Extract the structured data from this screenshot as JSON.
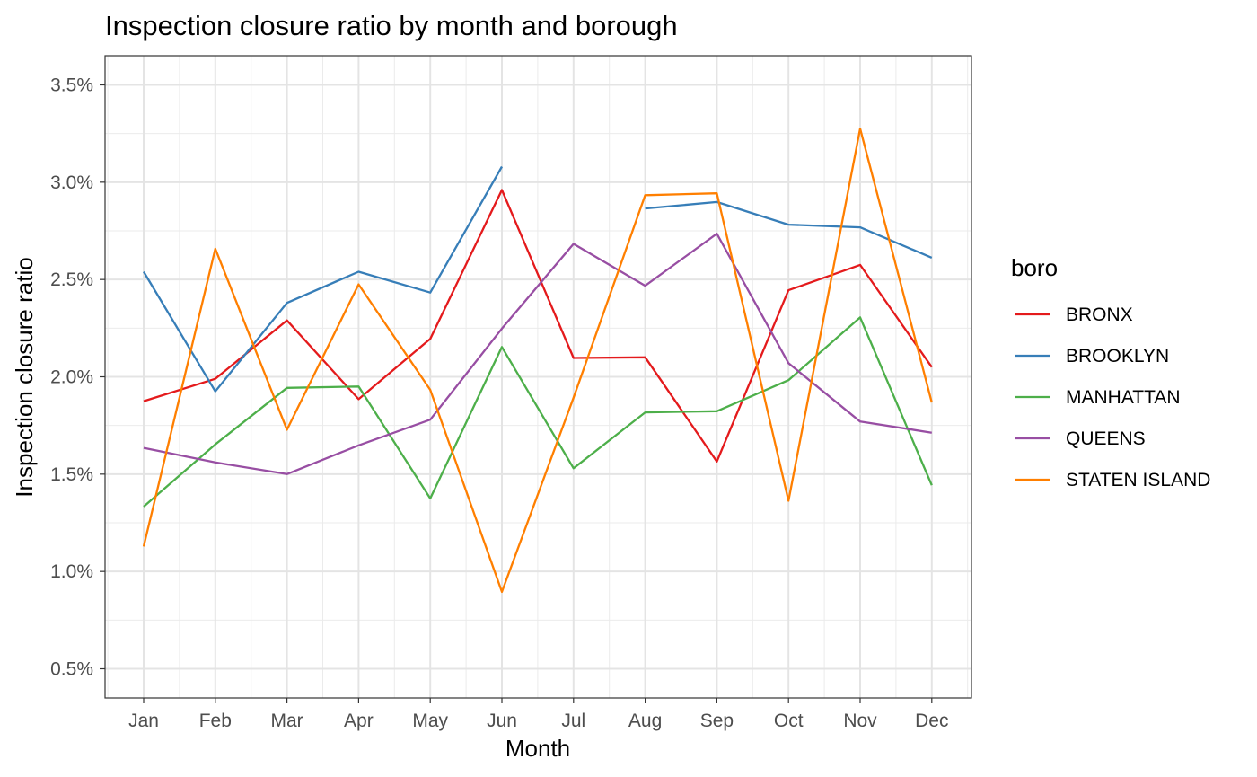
{
  "chart_data": {
    "type": "line",
    "title": "Inspection closure ratio by month and borough",
    "xlabel": "Month",
    "ylabel": "Inspection closure ratio",
    "categories": [
      "Jan",
      "Feb",
      "Mar",
      "Apr",
      "May",
      "Jun",
      "Jul",
      "Aug",
      "Sep",
      "Oct",
      "Nov",
      "Dec"
    ],
    "ylim": [
      0.0035,
      0.0365
    ],
    "yticks": [
      0.005,
      0.01,
      0.015,
      0.02,
      0.025,
      0.03,
      0.035
    ],
    "ytick_labels": [
      "0.5%",
      "1.0%",
      "1.5%",
      "2.0%",
      "2.5%",
      "3.0%",
      "3.5%"
    ],
    "grid": true,
    "legend": {
      "title": "boro",
      "position": "right"
    },
    "series": [
      {
        "name": "BRONX",
        "color": "#E41A1C",
        "values": [
          0.01875,
          0.0199,
          0.0229,
          0.01885,
          0.02195,
          0.0296,
          0.02097,
          0.021,
          0.01565,
          0.02445,
          0.02575,
          0.0205
        ]
      },
      {
        "name": "BROOKLYN",
        "color": "#377EB8",
        "values": [
          0.0254,
          0.01925,
          0.0238,
          0.0254,
          0.02433,
          0.0308,
          null,
          0.02865,
          0.02898,
          0.02782,
          0.02768,
          0.02612
        ]
      },
      {
        "name": "MANHATTAN",
        "color": "#4DAF4A",
        "values": [
          0.01333,
          0.01653,
          0.01943,
          0.0195,
          0.01375,
          0.02153,
          0.0153,
          0.01817,
          0.01823,
          0.01983,
          0.02305,
          0.01443
        ]
      },
      {
        "name": "QUEENS",
        "color": "#984EA3",
        "values": [
          0.01635,
          0.0156,
          0.015,
          0.01648,
          0.0178,
          0.02248,
          0.02683,
          0.02468,
          0.02735,
          0.0207,
          0.0177,
          0.01713
        ]
      },
      {
        "name": "STATEN ISLAND",
        "color": "#FF7F00",
        "values": [
          0.01128,
          0.02658,
          0.01728,
          0.02475,
          0.01933,
          0.00895,
          0.01893,
          0.02933,
          0.02943,
          0.01363,
          0.03275,
          0.01868
        ]
      }
    ]
  }
}
